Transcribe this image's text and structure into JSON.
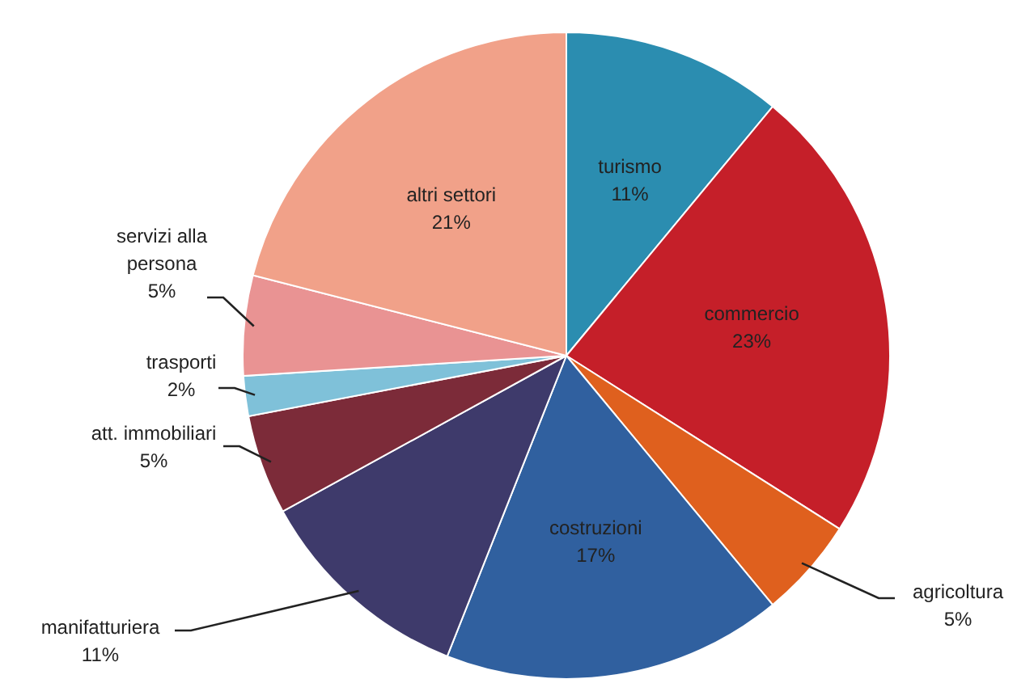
{
  "chart_data": {
    "type": "pie",
    "categories": [
      "turismo",
      "commercio",
      "agricoltura",
      "costruzioni",
      "manifatturiera",
      "att. immobiliari",
      "trasporti",
      "servizi alla persona",
      "altri settori"
    ],
    "values": [
      11,
      23,
      5,
      17,
      11,
      5,
      2,
      5,
      21
    ],
    "value_labels": [
      "11%",
      "23%",
      "5%",
      "17%",
      "11%",
      "5%",
      "2%",
      "5%",
      "21%"
    ],
    "colors": [
      "#2b8db0",
      "#c51f29",
      "#df601e",
      "#30609f",
      "#3e3a6b",
      "#7c2b39",
      "#7fc1d9",
      "#e99393",
      "#f1a189"
    ]
  }
}
